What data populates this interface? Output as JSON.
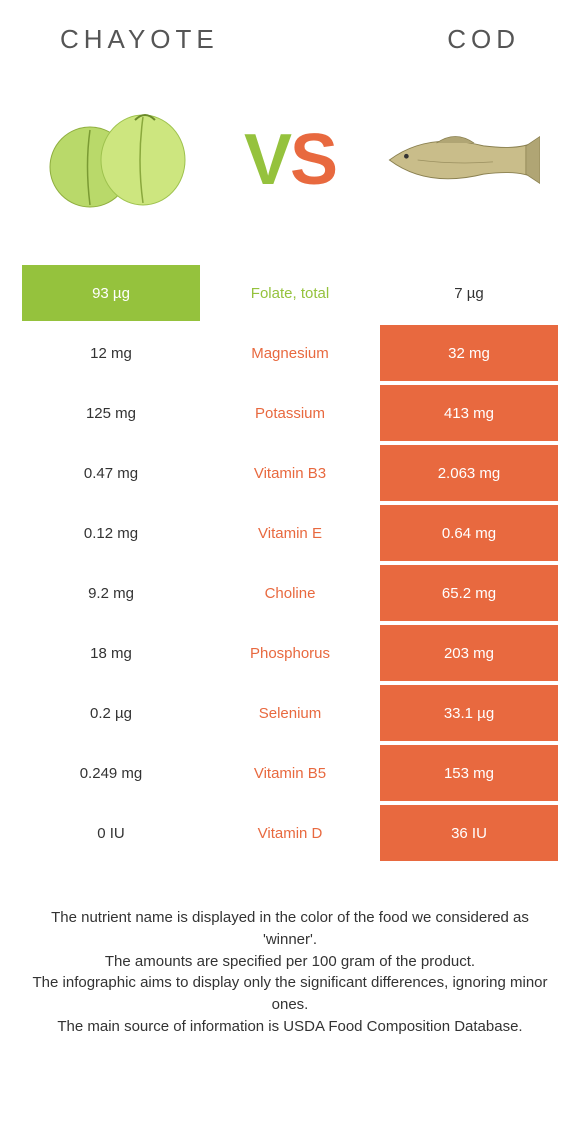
{
  "header": {
    "left": "CHAYOTE",
    "right": "COD"
  },
  "vs": {
    "v": "V",
    "s": "S"
  },
  "colors": {
    "green": "#95c23d",
    "orange": "#e8693f",
    "white": "#ffffff",
    "text": "#333333"
  },
  "table": {
    "rows": [
      {
        "left": "93 µg",
        "label": "Folate, total",
        "right": "7 µg",
        "winner": "left"
      },
      {
        "left": "12 mg",
        "label": "Magnesium",
        "right": "32 mg",
        "winner": "right"
      },
      {
        "left": "125 mg",
        "label": "Potassium",
        "right": "413 mg",
        "winner": "right"
      },
      {
        "left": "0.47 mg",
        "label": "Vitamin B3",
        "right": "2.063 mg",
        "winner": "right"
      },
      {
        "left": "0.12 mg",
        "label": "Vitamin E",
        "right": "0.64 mg",
        "winner": "right"
      },
      {
        "left": "9.2 mg",
        "label": "Choline",
        "right": "65.2 mg",
        "winner": "right"
      },
      {
        "left": "18 mg",
        "label": "Phosphorus",
        "right": "203 mg",
        "winner": "right"
      },
      {
        "left": "0.2 µg",
        "label": "Selenium",
        "right": "33.1 µg",
        "winner": "right"
      },
      {
        "left": "0.249 mg",
        "label": "Vitamin B5",
        "right": "153 mg",
        "winner": "right"
      },
      {
        "left": "0 IU",
        "label": "Vitamin D",
        "right": "36 IU",
        "winner": "right"
      }
    ]
  },
  "footer": {
    "lines": [
      "The nutrient name is displayed in the color of the food we considered as 'winner'.",
      "The amounts are specified per 100 gram of the product.",
      "The infographic aims to display only the significant differences, ignoring minor ones.",
      "The main source of information is USDA Food Composition Database."
    ]
  }
}
